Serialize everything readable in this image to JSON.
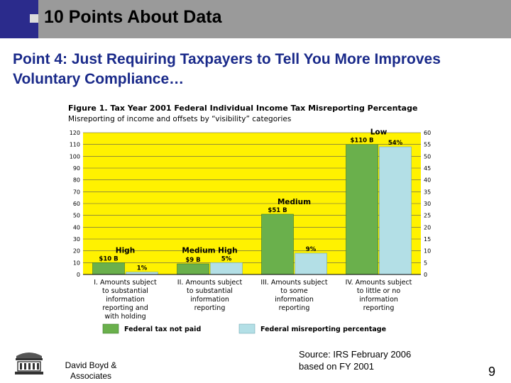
{
  "header": {
    "title": "10 Points About Data"
  },
  "subtitle": "Point 4: Just Requiring Taxpayers to Tell You More Improves Voluntary Compliance…",
  "chart_data": {
    "type": "bar",
    "title": "Figure 1. Tax Year 2001 Federal Individual Income Tax Misreporting Percentage",
    "subtitle": "Misreporting of income and offsets by “visibility” categories",
    "categories": [
      "I. Amounts subject to substantial information reporting and with holding",
      "II. Amounts subject to substantial information reporting",
      "III. Amounts subject to some information reporting",
      "IV. Amounts subject to little or no information reporting"
    ],
    "category_lines": [
      [
        "I. Amounts subject",
        "to substantial",
        "information",
        "reporting and",
        "with holding"
      ],
      [
        "II. Amounts subject",
        "to substantial",
        "information",
        "reporting"
      ],
      [
        "III. Amounts subject",
        "to some",
        "information",
        "reporting"
      ],
      [
        "IV. Amounts subject",
        "to little or no",
        "information",
        "reporting"
      ]
    ],
    "visibility_labels": [
      "High",
      "Medium High",
      "Medium",
      "Low"
    ],
    "series": [
      {
        "name": "Federal tax not paid",
        "axis": "left",
        "values": [
          10,
          9,
          51,
          110
        ],
        "labels": [
          "$10 B",
          "$9 B",
          "$51 B",
          "$110 B"
        ],
        "color": "#6ab04c"
      },
      {
        "name": "Federal misreporting percentage",
        "axis": "right",
        "values": [
          1,
          5,
          9,
          54
        ],
        "labels": [
          "1%",
          "5%",
          "9%",
          "54%"
        ],
        "color": "#b3dfe6"
      }
    ],
    "ylim_left": [
      0,
      120
    ],
    "yticks_left": [
      0,
      10,
      20,
      30,
      40,
      50,
      60,
      70,
      80,
      90,
      100,
      110,
      120
    ],
    "ylim_right": [
      0,
      60
    ],
    "yticks_right": [
      0,
      5,
      10,
      15,
      20,
      25,
      30,
      35,
      40,
      45,
      50,
      55,
      60
    ],
    "grid": true,
    "plot_background": "#fff200",
    "legend_position": "bottom"
  },
  "footer": {
    "author_lines": [
      "David Boyd &",
      "Associates"
    ],
    "source_lines": [
      "Source: IRS February 2006",
      "based on FY 2001"
    ],
    "page_number": "9"
  },
  "colors": {
    "title_bar": "#9a9a9a",
    "accent": "#2b2b8c",
    "subtitle": "#1a2a8a"
  }
}
